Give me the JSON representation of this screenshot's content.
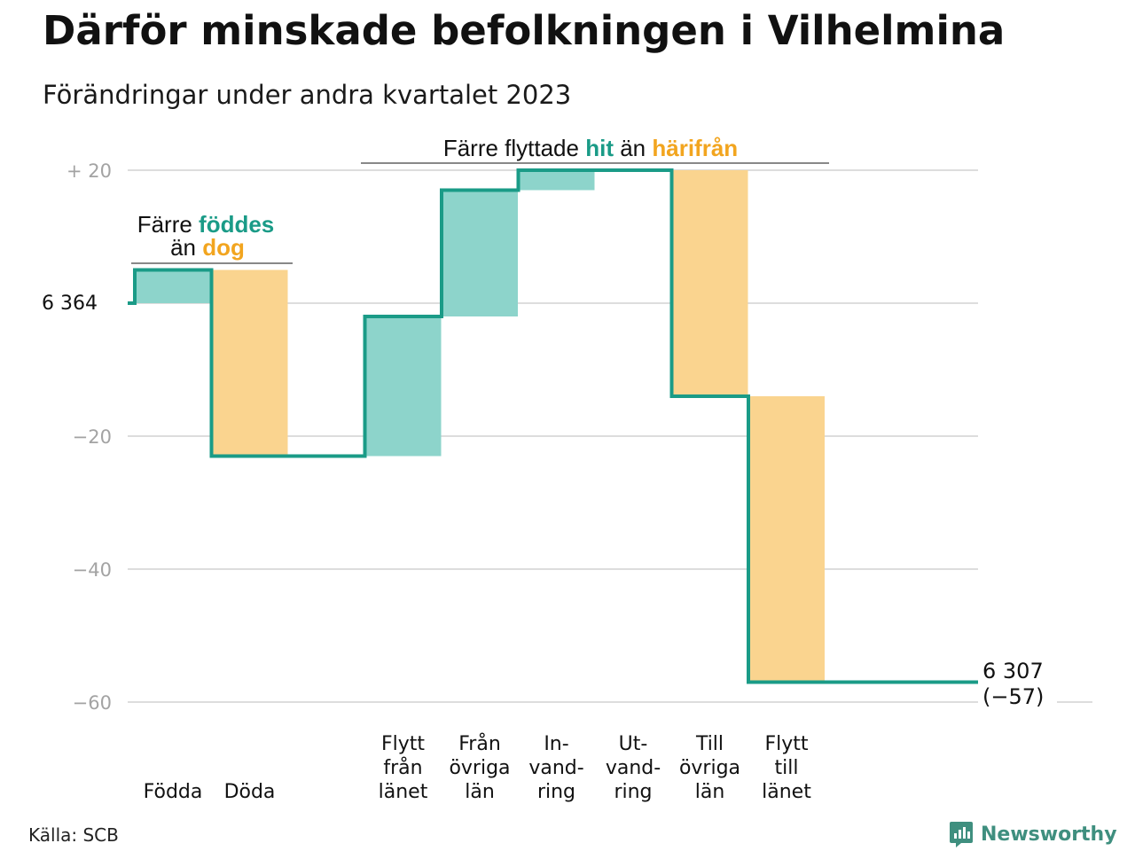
{
  "title": "Därför minskade befolkningen i Vilhelmina",
  "subtitle": "Förändringar under andra kvartalet 2023",
  "source": "Källa: SCB",
  "brand": "Newsworthy",
  "colors": {
    "line": "#1a9b87",
    "increase": "#8dd4cb",
    "decrease": "#fad48f",
    "hit": "#1a9b87",
    "harifran": "#f2a51f",
    "grid": "#dddddd",
    "tick": "#a3a3a3"
  },
  "annotations": {
    "births": {
      "prefix": "Färre ",
      "highlight1": "föddes",
      "middle": "än ",
      "highlight2": "dog"
    },
    "migration": {
      "prefix": "Färre flyttade ",
      "highlight1": "hit",
      "middle": " än ",
      "highlight2": "härifrån"
    }
  },
  "chart_data": {
    "type": "waterfall",
    "start_label": "6 364",
    "end_label": "6 307",
    "end_change_label": "(−57)",
    "yticks": [
      {
        "value": 20,
        "label": "+  20"
      },
      {
        "value": 0,
        "label": ""
      },
      {
        "value": -20,
        "label": "−20"
      },
      {
        "value": -40,
        "label": "−40"
      },
      {
        "value": -60,
        "label": "−60"
      }
    ],
    "ylim": [
      -60,
      20
    ],
    "categories": [
      {
        "label": [
          "Födda"
        ],
        "change": 5,
        "kind": "increase"
      },
      {
        "label": [
          "Döda"
        ],
        "change": -28,
        "kind": "decrease"
      },
      {
        "label": [],
        "change": 0,
        "kind": "gap"
      },
      {
        "label": [
          "Flytt",
          "från",
          "länet"
        ],
        "change": 21,
        "kind": "increase"
      },
      {
        "label": [
          "Från",
          "övriga",
          "län"
        ],
        "change": 19,
        "kind": "increase"
      },
      {
        "label": [
          "In-",
          "vand-",
          "ring"
        ],
        "change": 3,
        "kind": "increase"
      },
      {
        "label": [
          "Ut-",
          "vand-",
          "ring"
        ],
        "change": 0,
        "kind": "decrease"
      },
      {
        "label": [
          "Till",
          "övriga",
          "län"
        ],
        "change": -34,
        "kind": "decrease"
      },
      {
        "label": [
          "Flytt",
          "till",
          "länet"
        ],
        "change": -43,
        "kind": "decrease"
      }
    ]
  }
}
